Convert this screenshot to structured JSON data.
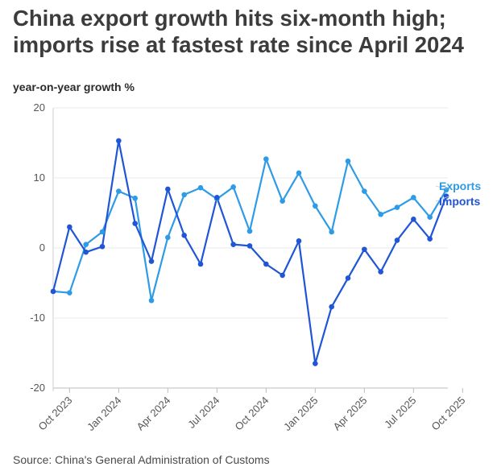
{
  "chart_data": {
    "type": "line",
    "title": "China export growth hits six-month high; imports rise at fastest rate since April 2024",
    "ylabel": "year-on-year growth %",
    "xlabel": "",
    "source": "Source: China's General Administration of Customs",
    "ylim": [
      -20,
      20
    ],
    "yticks": [
      20,
      10,
      0,
      -10,
      -20
    ],
    "x": [
      "Sep 2023",
      "Oct 2023",
      "Nov 2023",
      "Dec 2023",
      "Jan 2024",
      "Feb 2024",
      "Mar 2024",
      "Apr 2024",
      "May 2024",
      "Jun 2024",
      "Jul 2024",
      "Aug 2024",
      "Sep 2024",
      "Oct 2024",
      "Nov 2024",
      "Dec 2024",
      "Jan 2025",
      "Feb 2025",
      "Mar 2025",
      "Apr 2025",
      "May 2025",
      "Jun 2025",
      "Jul 2025",
      "Aug 2025",
      "Sep 2025"
    ],
    "xticks": [
      "Oct 2023",
      "Jan 2024",
      "Apr 2024",
      "Jul 2024",
      "Oct 2024",
      "Jan 2025",
      "Apr 2025",
      "Jul 2025",
      "Oct 2025"
    ],
    "series": [
      {
        "name": "Exports",
        "color": "#2e9be6",
        "values": [
          -6.2,
          -6.4,
          0.5,
          2.3,
          8.1,
          7.1,
          -7.5,
          1.5,
          7.6,
          8.6,
          7.0,
          8.7,
          2.4,
          12.7,
          6.7,
          10.7,
          6.0,
          2.3,
          12.4,
          8.1,
          4.8,
          5.8,
          7.2,
          4.4,
          8.3
        ]
      },
      {
        "name": "Imports",
        "color": "#1f55d6",
        "values": [
          -6.2,
          3.0,
          -0.6,
          0.2,
          15.3,
          3.5,
          -1.9,
          8.4,
          1.8,
          -2.3,
          7.2,
          0.5,
          0.3,
          -2.3,
          -3.9,
          1.0,
          -16.5,
          -8.4,
          -4.3,
          -0.2,
          -3.4,
          1.1,
          4.1,
          1.3,
          7.4
        ]
      }
    ],
    "grid": true,
    "legend": "end-of-line labels, right"
  }
}
